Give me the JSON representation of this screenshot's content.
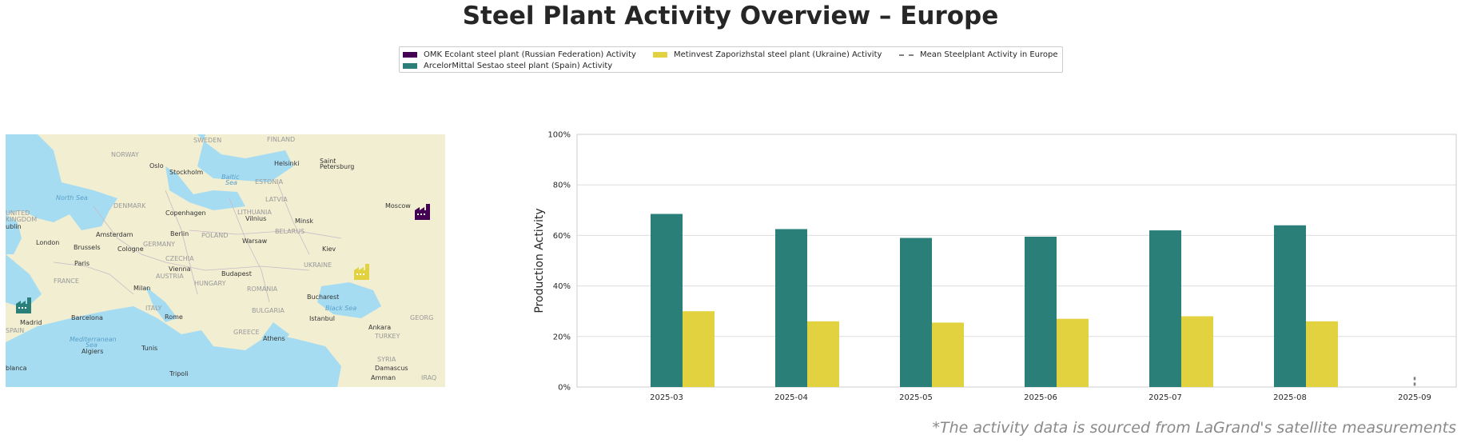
{
  "title": "Steel Plant Activity Overview – Europe",
  "legend": [
    {
      "label": "OMK Ecolant steel plant (Russian Federation) Activity",
      "color": "#440154",
      "kind": "bar"
    },
    {
      "label": "ArcelorMittal Sestao steel plant (Spain) Activity",
      "color": "#2a8079",
      "kind": "bar"
    },
    {
      "label": "Metinvest Zaporizhstal steel plant (Ukraine) Activity",
      "color": "#e2d240",
      "kind": "bar"
    },
    {
      "label": "Mean Steelplant Activity in Europe",
      "color": "#808080",
      "kind": "dashed-line"
    }
  ],
  "map": {
    "labels": [
      "SWEDEN",
      "FINLAND",
      "NORWAY",
      "Oslo",
      "Stockholm",
      "Helsinki",
      "Saint",
      "Petersburg",
      "Baltic",
      "Sea",
      "ESTONIA",
      "North Sea",
      "DENMARK",
      "LATVIA",
      "Copenhagen",
      "LITHUANIA",
      "Vilnius",
      "Minsk",
      "Moscow",
      "UNITED",
      "KINGDOM",
      "ublin",
      "Amsterdam",
      "Berlin",
      "POLAND",
      "BELARUS",
      "London",
      "Brussels",
      "Cologne",
      "GERMANY",
      "Warsaw",
      "Kiev",
      "Paris",
      "CZECHIA",
      "Vienna",
      "Budapest",
      "FRANCE",
      "AUSTRIA",
      "HUNGARY",
      "UKRAINE",
      "Milan",
      "ROMANIA",
      "ITALY",
      "BULGARIA",
      "Bucharest",
      "Black Sea",
      "Madrid",
      "SPAIN",
      "Barcelona",
      "Rome",
      "Istanbul",
      "Ankara",
      "GEORG",
      "Mediterranean",
      "Sea",
      "Algiers",
      "Tunis",
      "GREECE",
      "Athens",
      "TURKEY",
      "SYRIA",
      "blanca",
      "Tripoli",
      "Damascus",
      "Amman",
      "IRAQ"
    ],
    "icon_colors": {
      "russia": "#440154",
      "ukraine": "#e2d240",
      "spain": "#2a8079"
    }
  },
  "chart_data": {
    "type": "bar",
    "categories": [
      "2025-03",
      "2025-04",
      "2025-05",
      "2025-06",
      "2025-07",
      "2025-08",
      "2025-09"
    ],
    "series": [
      {
        "name": "OMK Ecolant steel plant (Russian Federation) Activity",
        "color": "#440154",
        "values": [
          null,
          null,
          null,
          null,
          null,
          null,
          null
        ]
      },
      {
        "name": "ArcelorMittal Sestao steel plant (Spain) Activity",
        "color": "#2a8079",
        "values": [
          68.5,
          62.5,
          59,
          59.5,
          62,
          64,
          null
        ]
      },
      {
        "name": "Metinvest Zaporizhstal steel plant (Ukraine) Activity",
        "color": "#e2d240",
        "values": [
          30,
          26,
          25.5,
          27,
          28,
          26,
          null
        ]
      }
    ],
    "mean_line": {
      "name": "Mean Steelplant Activity in Europe",
      "color": "#808080",
      "values": [
        null,
        null,
        null,
        null,
        null,
        null,
        4
      ]
    },
    "ylabel": "Production Activity",
    "ylim": [
      0,
      100
    ],
    "yticks": [
      "0%",
      "20%",
      "40%",
      "60%",
      "80%",
      "100%"
    ],
    "grid": true,
    "legend_position": "top-center"
  },
  "footnote": "*The activity data is sourced from LaGrand's satellite measurements"
}
